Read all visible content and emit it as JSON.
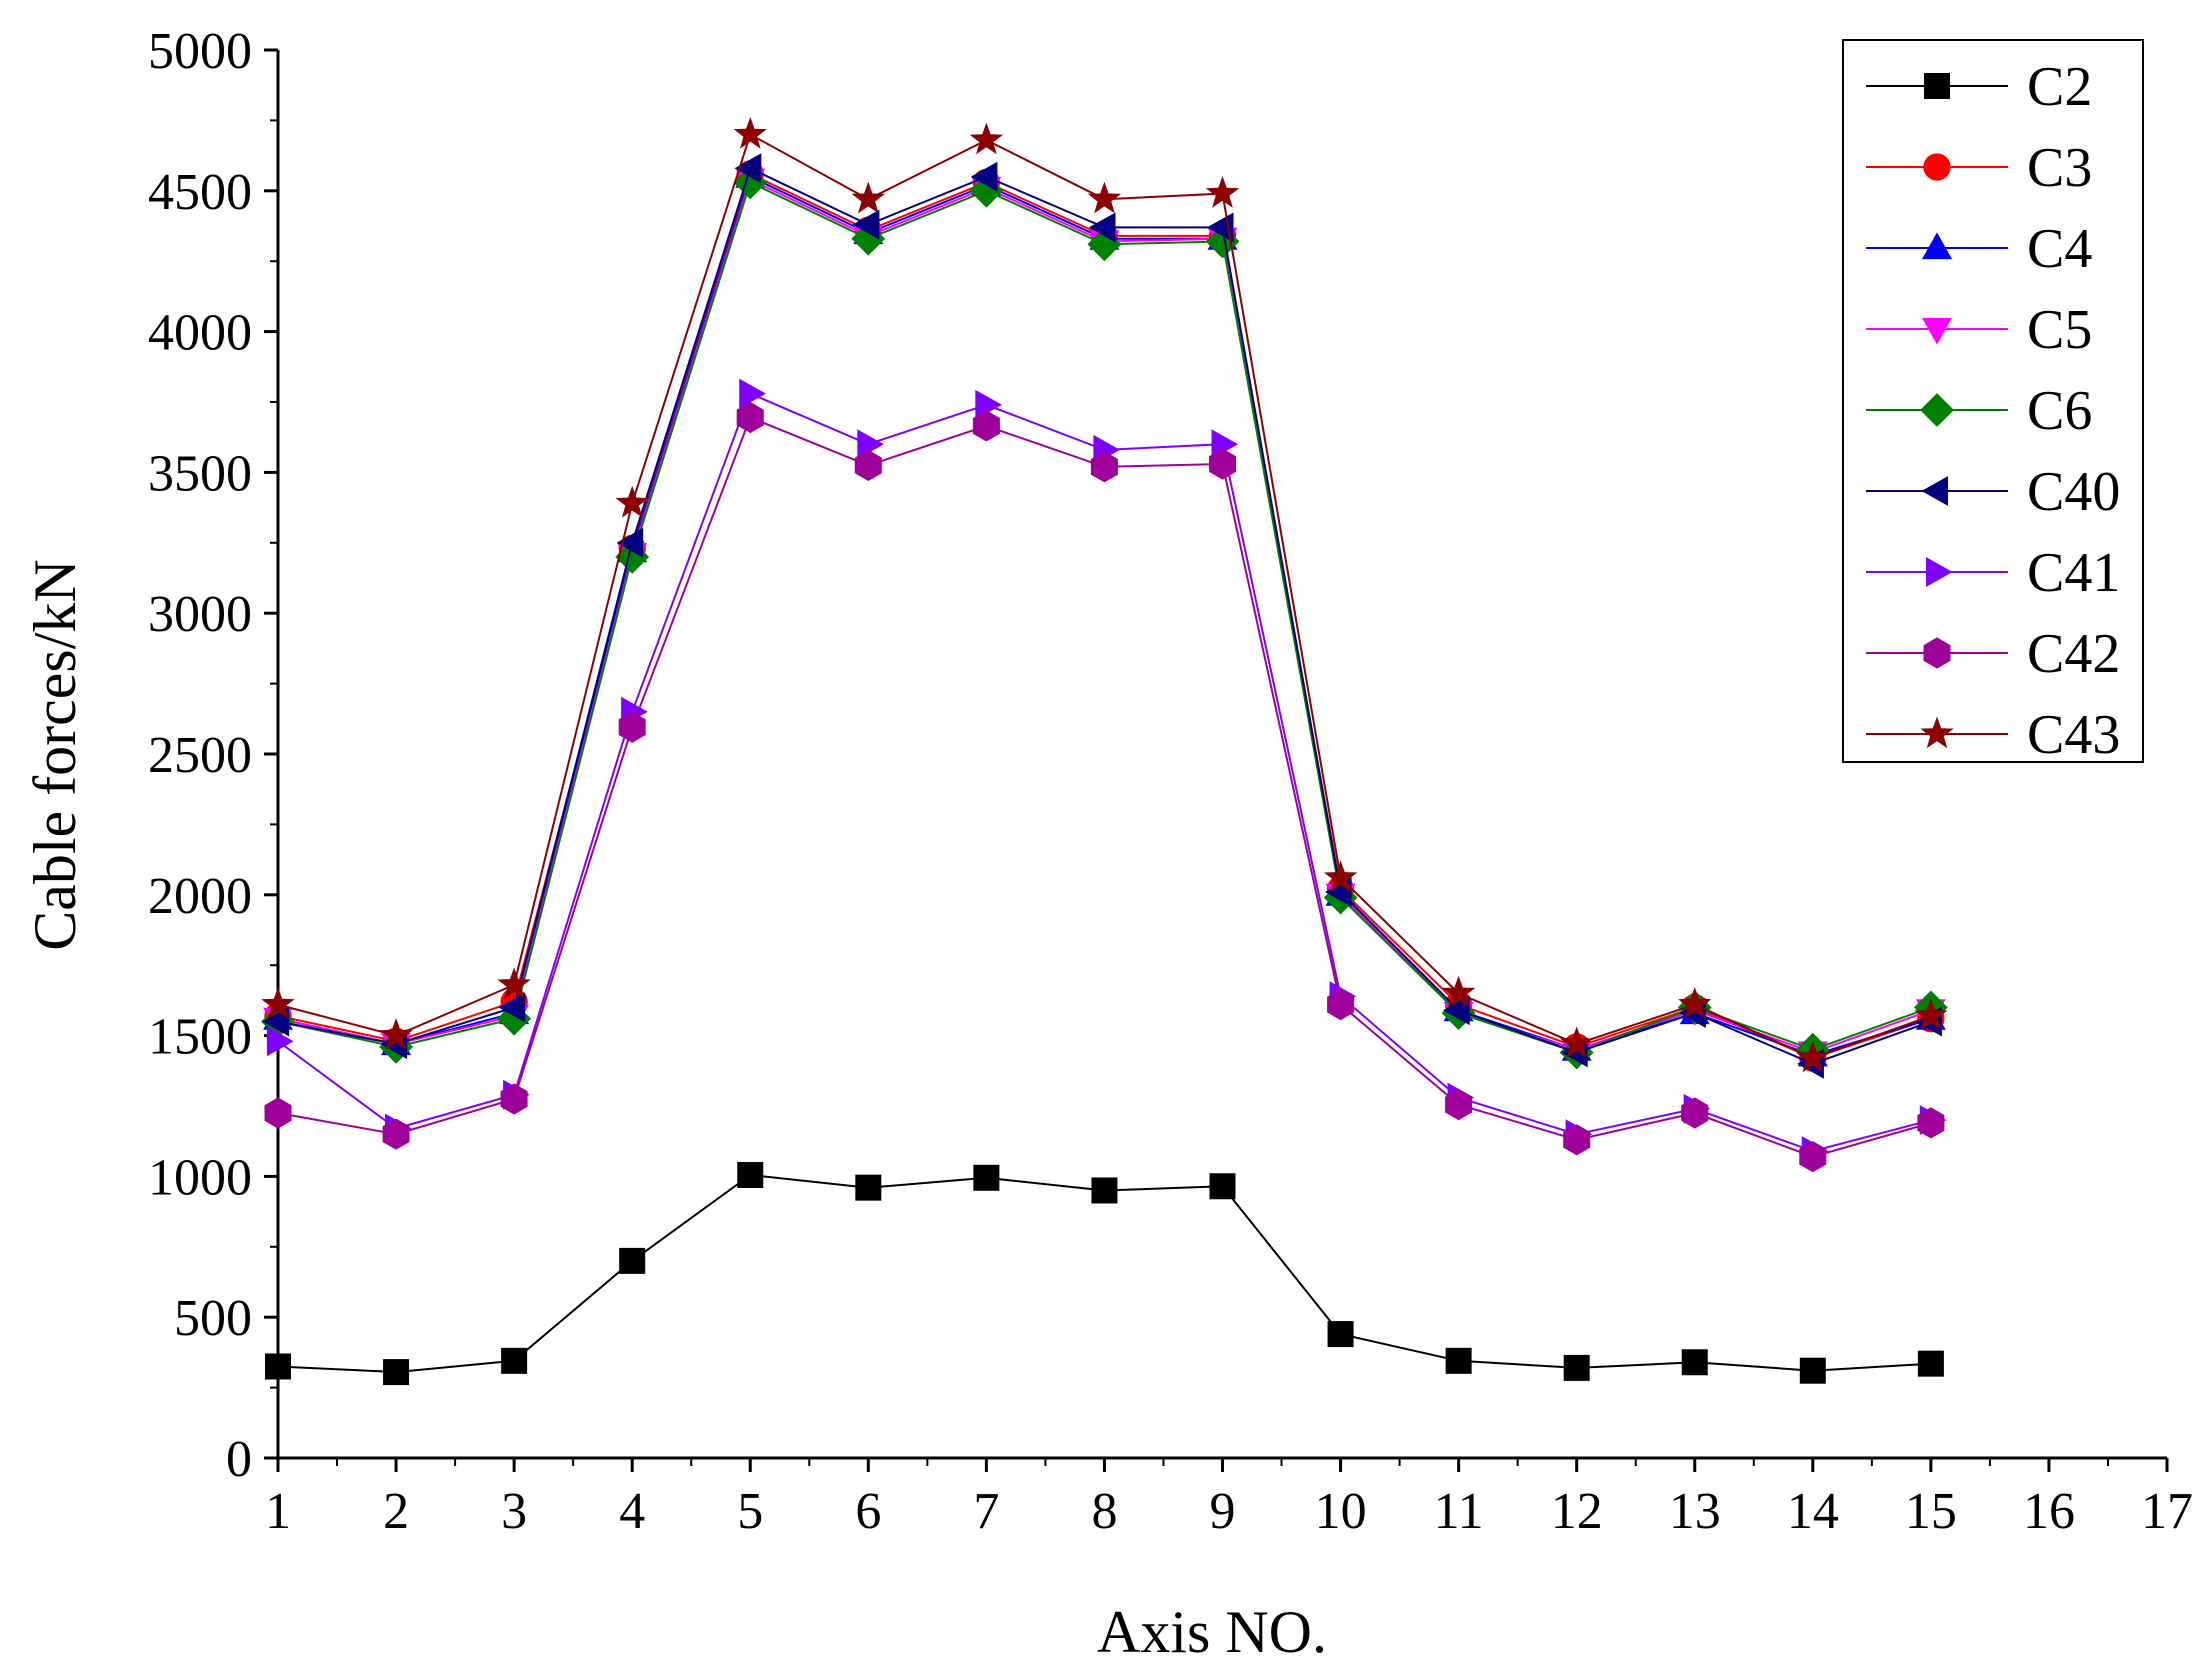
{
  "chart_data": {
    "type": "line",
    "title": "",
    "xlabel": "Axis NO.",
    "ylabel": "Cable forces/kN",
    "xlim": [
      1,
      17
    ],
    "ylim": [
      0,
      5000
    ],
    "xticks": [
      1,
      2,
      3,
      4,
      5,
      6,
      7,
      8,
      9,
      10,
      11,
      12,
      13,
      14,
      15,
      16,
      17
    ],
    "yticks": [
      0,
      500,
      1000,
      1500,
      2000,
      2500,
      3000,
      3500,
      4000,
      4500,
      5000
    ],
    "x": [
      1,
      2,
      3,
      4,
      5,
      6,
      7,
      8,
      9,
      10,
      11,
      12,
      13,
      14,
      15
    ],
    "legend_position": "top-right",
    "grid": false,
    "series": [
      {
        "name": "C2",
        "color": "#000000",
        "marker": "square",
        "values": [
          325,
          305,
          345,
          700,
          1005,
          960,
          995,
          950,
          965,
          440,
          345,
          320,
          340,
          310,
          335
        ]
      },
      {
        "name": "C3",
        "color": "#ff0000",
        "marker": "circle",
        "values": [
          1570,
          1480,
          1620,
          3230,
          4560,
          4360,
          4530,
          4340,
          4340,
          2020,
          1610,
          1460,
          1600,
          1420,
          1560
        ]
      },
      {
        "name": "C4",
        "color": "#0000ff",
        "marker": "triangle-up",
        "values": [
          1560,
          1470,
          1580,
          3220,
          4550,
          4350,
          4520,
          4330,
          4330,
          2000,
          1590,
          1450,
          1580,
          1430,
          1560
        ]
      },
      {
        "name": "C5",
        "color": "#ff00ff",
        "marker": "triangle-down",
        "values": [
          1560,
          1470,
          1570,
          3210,
          4540,
          4340,
          4510,
          4320,
          4330,
          2000,
          1580,
          1450,
          1590,
          1440,
          1590
        ]
      },
      {
        "name": "C6",
        "color": "#008000",
        "marker": "diamond",
        "values": [
          1550,
          1460,
          1560,
          3200,
          4530,
          4330,
          4500,
          4310,
          4320,
          1990,
          1580,
          1440,
          1600,
          1450,
          1600
        ]
      },
      {
        "name": "C40",
        "color": "#000080",
        "marker": "triangle-left",
        "values": [
          1550,
          1470,
          1600,
          3250,
          4580,
          4380,
          4550,
          4370,
          4370,
          2010,
          1590,
          1440,
          1580,
          1400,
          1550
        ]
      },
      {
        "name": "C41",
        "color": "#8000ff",
        "marker": "triangle-right",
        "values": [
          1480,
          1170,
          1290,
          2650,
          3780,
          3600,
          3740,
          3580,
          3600,
          1640,
          1280,
          1150,
          1240,
          1090,
          1200
        ]
      },
      {
        "name": "C42",
        "color": "#a0009a",
        "marker": "hexagon",
        "values": [
          1225,
          1150,
          1275,
          2595,
          3695,
          3525,
          3665,
          3520,
          3530,
          1610,
          1255,
          1130,
          1225,
          1070,
          1190
        ]
      },
      {
        "name": "C43",
        "color": "#8b0000",
        "marker": "star",
        "values": [
          1610,
          1500,
          1680,
          3390,
          4700,
          4470,
          4680,
          4470,
          4490,
          2060,
          1650,
          1470,
          1610,
          1420,
          1570
        ]
      }
    ]
  }
}
